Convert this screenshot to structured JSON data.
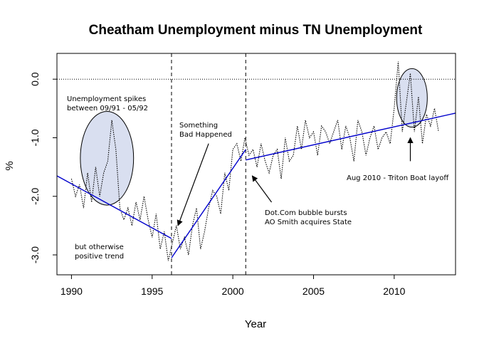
{
  "chart_data": {
    "type": "line",
    "title": "Cheatham Unemployment minus TN Unemployment",
    "xlabel": "Year",
    "ylabel": "%",
    "xlim": [
      1989.1,
      2013.8
    ],
    "ylim": [
      -3.34,
      0.44
    ],
    "x_ticks": [
      1990,
      1995,
      2000,
      2005,
      2010
    ],
    "x_tick_labels": [
      "1990",
      "1995",
      "2000",
      "2005",
      "2010"
    ],
    "y_ticks": [
      0.0,
      -1.0,
      -2.0,
      -3.0
    ],
    "y_tick_labels": [
      "0.0",
      "-1.0",
      "-2.0",
      "-3.0"
    ],
    "grid": false,
    "legend": "none",
    "colors": {
      "data": "#000000",
      "trend": "#0000cc",
      "ellipse_fill": "#d9dff0",
      "ellipse_stroke": "#000000"
    },
    "reference_lines": [
      {
        "orientation": "horizontal",
        "y": 0.0,
        "style": "dotted"
      },
      {
        "orientation": "vertical",
        "x": 1996.2,
        "style": "dashed"
      },
      {
        "orientation": "vertical",
        "x": 2000.8,
        "style": "dashed"
      }
    ],
    "series": [
      {
        "style": "dotted",
        "x": [
          1990.0,
          1990.25,
          1990.5,
          1990.75,
          1991.0,
          1991.25,
          1991.5,
          1991.75,
          1992.0,
          1992.25,
          1992.5,
          1992.75,
          1993.0,
          1993.25,
          1993.5,
          1993.75,
          1994.0,
          1994.25,
          1994.5,
          1994.75,
          1995.0,
          1995.25,
          1995.5,
          1995.75,
          1996.0,
          1996.25,
          1996.5,
          1996.75,
          1997.0,
          1997.25,
          1997.5,
          1997.75,
          1998.0,
          1998.25,
          1998.5,
          1998.75,
          1999.0,
          1999.25,
          1999.5,
          1999.75,
          2000.0,
          2000.25,
          2000.5,
          2000.75,
          2001.0,
          2001.25,
          2001.5,
          2001.75,
          2002.0,
          2002.25,
          2002.5,
          2002.75,
          2003.0,
          2003.25,
          2003.5,
          2003.75,
          2004.0,
          2004.25,
          2004.5,
          2004.75,
          2005.0,
          2005.25,
          2005.5,
          2005.75,
          2006.0,
          2006.25,
          2006.5,
          2006.75,
          2007.0,
          2007.25,
          2007.5,
          2007.75,
          2008.0,
          2008.25,
          2008.5,
          2008.75,
          2009.0,
          2009.25,
          2009.5,
          2009.75,
          2010.0,
          2010.25,
          2010.5,
          2010.75,
          2011.0,
          2011.25,
          2011.5,
          2011.75,
          2012.0,
          2012.25,
          2012.5,
          2012.75
        ],
        "y": [
          -1.7,
          -2.0,
          -1.8,
          -2.2,
          -1.6,
          -2.1,
          -1.5,
          -2.0,
          -1.6,
          -1.4,
          -0.7,
          -1.2,
          -2.2,
          -2.4,
          -2.2,
          -2.5,
          -2.1,
          -2.4,
          -2.0,
          -2.4,
          -2.7,
          -2.3,
          -2.9,
          -2.6,
          -3.1,
          -2.8,
          -2.5,
          -2.9,
          -2.7,
          -3.0,
          -2.5,
          -2.2,
          -2.9,
          -2.6,
          -2.2,
          -1.9,
          -2.0,
          -2.3,
          -1.6,
          -1.9,
          -1.2,
          -1.1,
          -1.4,
          -1.0,
          -1.3,
          -1.2,
          -1.5,
          -1.1,
          -1.4,
          -1.6,
          -1.3,
          -1.2,
          -1.7,
          -1.0,
          -1.4,
          -1.3,
          -0.8,
          -1.2,
          -0.7,
          -1.0,
          -0.9,
          -1.3,
          -0.8,
          -0.9,
          -1.1,
          -0.9,
          -0.7,
          -1.2,
          -0.8,
          -1.0,
          -1.4,
          -0.7,
          -0.9,
          -1.3,
          -1.0,
          -0.8,
          -1.2,
          -1.0,
          -0.9,
          -1.1,
          -0.5,
          0.3,
          -0.9,
          -0.4,
          0.1,
          -0.9,
          -0.3,
          -1.1,
          -0.6,
          -0.8,
          -0.5,
          -0.9
        ]
      },
      {
        "style": "solid",
        "color": "#0000cc",
        "x": [
          1989.1,
          1996.2
        ],
        "y": [
          -1.65,
          -2.72
        ]
      },
      {
        "style": "solid",
        "color": "#0000cc",
        "x": [
          1996.2,
          2000.8
        ],
        "y": [
          -3.05,
          -1.2
        ]
      },
      {
        "style": "solid",
        "color": "#0000cc",
        "x": [
          2000.8,
          2013.8
        ],
        "y": [
          -1.38,
          -0.58
        ]
      }
    ],
    "highlights": [
      {
        "shape": "ellipse",
        "cx": 1992.2,
        "cy": -1.35,
        "rx": 1.65,
        "ry": 0.8
      },
      {
        "shape": "ellipse",
        "cx": 2011.1,
        "cy": -0.32,
        "rx": 0.95,
        "ry": 0.5
      }
    ],
    "annotations": [
      {
        "lines": [
          "Unemployment spikes",
          "between 09/91 - 05/92"
        ]
      },
      {
        "lines": [
          "but otherwise",
          "positive trend"
        ]
      },
      {
        "lines": [
          "Something",
          "Bad Happened"
        ],
        "arrow": {
          "from": [
            1998.5,
            -1.1
          ],
          "to": [
            1996.6,
            -2.5
          ]
        }
      },
      {
        "lines": [
          "Dot.Com bubble bursts",
          "AO Smith acquires State"
        ],
        "arrow": {
          "from": [
            2002.4,
            -2.1
          ],
          "to": [
            2001.2,
            -1.65
          ]
        }
      },
      {
        "lines": [
          "Aug 2010 - Triton Boat layoff"
        ],
        "arrow": {
          "from": [
            2011.0,
            -1.4
          ],
          "to": [
            2011.0,
            -1.0
          ]
        }
      }
    ]
  }
}
